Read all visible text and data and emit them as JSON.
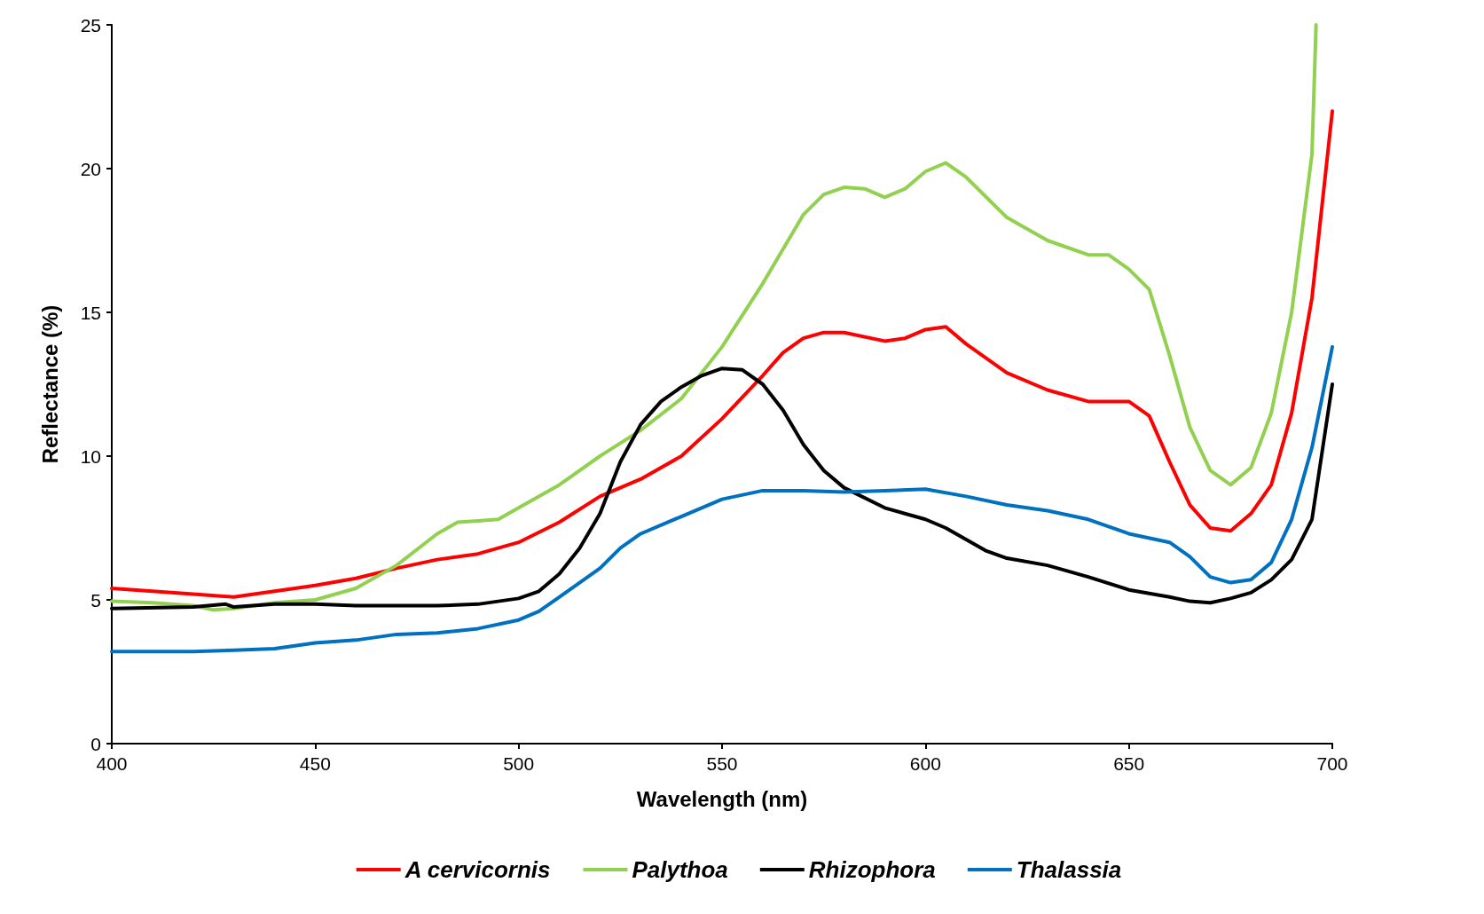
{
  "chart_data": {
    "type": "line",
    "xlabel": "Wavelength (nm)",
    "ylabel": "Reflectance (%)",
    "xlim": [
      400,
      700
    ],
    "xticks": [
      400,
      450,
      500,
      550,
      600,
      650,
      700
    ],
    "ylim": [
      0,
      25
    ],
    "yticks": [
      0,
      5,
      10,
      15,
      20,
      25
    ],
    "grid": false,
    "legend": "bottom",
    "marker": "none",
    "line_style": "solid",
    "series": [
      {
        "name": "A cervicornis",
        "color": "#ff0000",
        "x": [
          400,
          410,
          420,
          430,
          440,
          450,
          460,
          470,
          480,
          490,
          500,
          510,
          520,
          530,
          540,
          550,
          560,
          565,
          570,
          575,
          580,
          590,
          595,
          600,
          605,
          610,
          620,
          630,
          640,
          650,
          655,
          660,
          665,
          670,
          675,
          680,
          685,
          690,
          695,
          700
        ],
        "values": [
          5.4,
          5.3,
          5.2,
          5.1,
          5.3,
          5.5,
          5.75,
          6.1,
          6.4,
          6.6,
          7.0,
          7.7,
          8.6,
          9.2,
          10.0,
          11.3,
          12.8,
          13.6,
          14.1,
          14.3,
          14.3,
          14.0,
          14.1,
          14.4,
          14.5,
          13.9,
          12.9,
          12.3,
          11.9,
          11.9,
          11.4,
          9.8,
          8.3,
          7.5,
          7.4,
          8.0,
          9.0,
          11.5,
          15.5,
          22.0
        ]
      },
      {
        "name": "Palythoa",
        "color": "#92d050",
        "x": [
          400,
          410,
          420,
          425,
          430,
          440,
          450,
          460,
          470,
          480,
          485,
          490,
          495,
          500,
          510,
          520,
          530,
          540,
          550,
          560,
          570,
          575,
          580,
          585,
          590,
          595,
          600,
          605,
          610,
          620,
          630,
          640,
          645,
          650,
          655,
          660,
          665,
          670,
          675,
          680,
          685,
          690,
          695,
          696
        ],
        "values": [
          4.95,
          4.9,
          4.8,
          4.65,
          4.7,
          4.9,
          5.0,
          5.4,
          6.2,
          7.3,
          7.7,
          7.75,
          7.8,
          8.2,
          9.0,
          10.0,
          10.9,
          12.0,
          13.8,
          16.0,
          18.4,
          19.1,
          19.35,
          19.3,
          19.0,
          19.3,
          19.9,
          20.2,
          19.7,
          18.3,
          17.5,
          17.0,
          17.0,
          16.5,
          15.8,
          13.5,
          11.0,
          9.5,
          9.0,
          9.6,
          11.5,
          15.0,
          20.5,
          25.0
        ]
      },
      {
        "name": "Rhizophora",
        "color": "#000000",
        "x": [
          400,
          420,
          428,
          430,
          440,
          450,
          460,
          470,
          480,
          490,
          500,
          505,
          510,
          515,
          520,
          525,
          530,
          535,
          540,
          545,
          550,
          555,
          560,
          565,
          570,
          575,
          580,
          590,
          600,
          605,
          610,
          615,
          620,
          630,
          640,
          650,
          660,
          665,
          670,
          675,
          680,
          685,
          690,
          695,
          700
        ],
        "values": [
          4.7,
          4.75,
          4.85,
          4.75,
          4.85,
          4.85,
          4.8,
          4.8,
          4.8,
          4.85,
          5.05,
          5.3,
          5.9,
          6.8,
          8.0,
          9.8,
          11.1,
          11.9,
          12.4,
          12.8,
          13.05,
          13.0,
          12.5,
          11.6,
          10.4,
          9.5,
          8.9,
          8.2,
          7.8,
          7.5,
          7.1,
          6.7,
          6.45,
          6.2,
          5.8,
          5.35,
          5.1,
          4.95,
          4.9,
          5.05,
          5.25,
          5.7,
          6.4,
          7.8,
          12.5
        ]
      },
      {
        "name": "Thalassia",
        "color": "#0070c0",
        "x": [
          400,
          420,
          430,
          440,
          450,
          460,
          470,
          480,
          490,
          500,
          505,
          510,
          515,
          520,
          525,
          530,
          540,
          550,
          560,
          570,
          580,
          590,
          600,
          610,
          620,
          630,
          640,
          650,
          660,
          665,
          670,
          675,
          680,
          685,
          690,
          695,
          700
        ],
        "values": [
          3.2,
          3.2,
          3.25,
          3.3,
          3.5,
          3.6,
          3.8,
          3.85,
          4.0,
          4.3,
          4.6,
          5.1,
          5.6,
          6.1,
          6.8,
          7.3,
          7.9,
          8.5,
          8.8,
          8.8,
          8.75,
          8.8,
          8.85,
          8.6,
          8.3,
          8.1,
          7.8,
          7.3,
          7.0,
          6.5,
          5.8,
          5.6,
          5.7,
          6.3,
          7.8,
          10.3,
          13.8
        ]
      }
    ]
  }
}
